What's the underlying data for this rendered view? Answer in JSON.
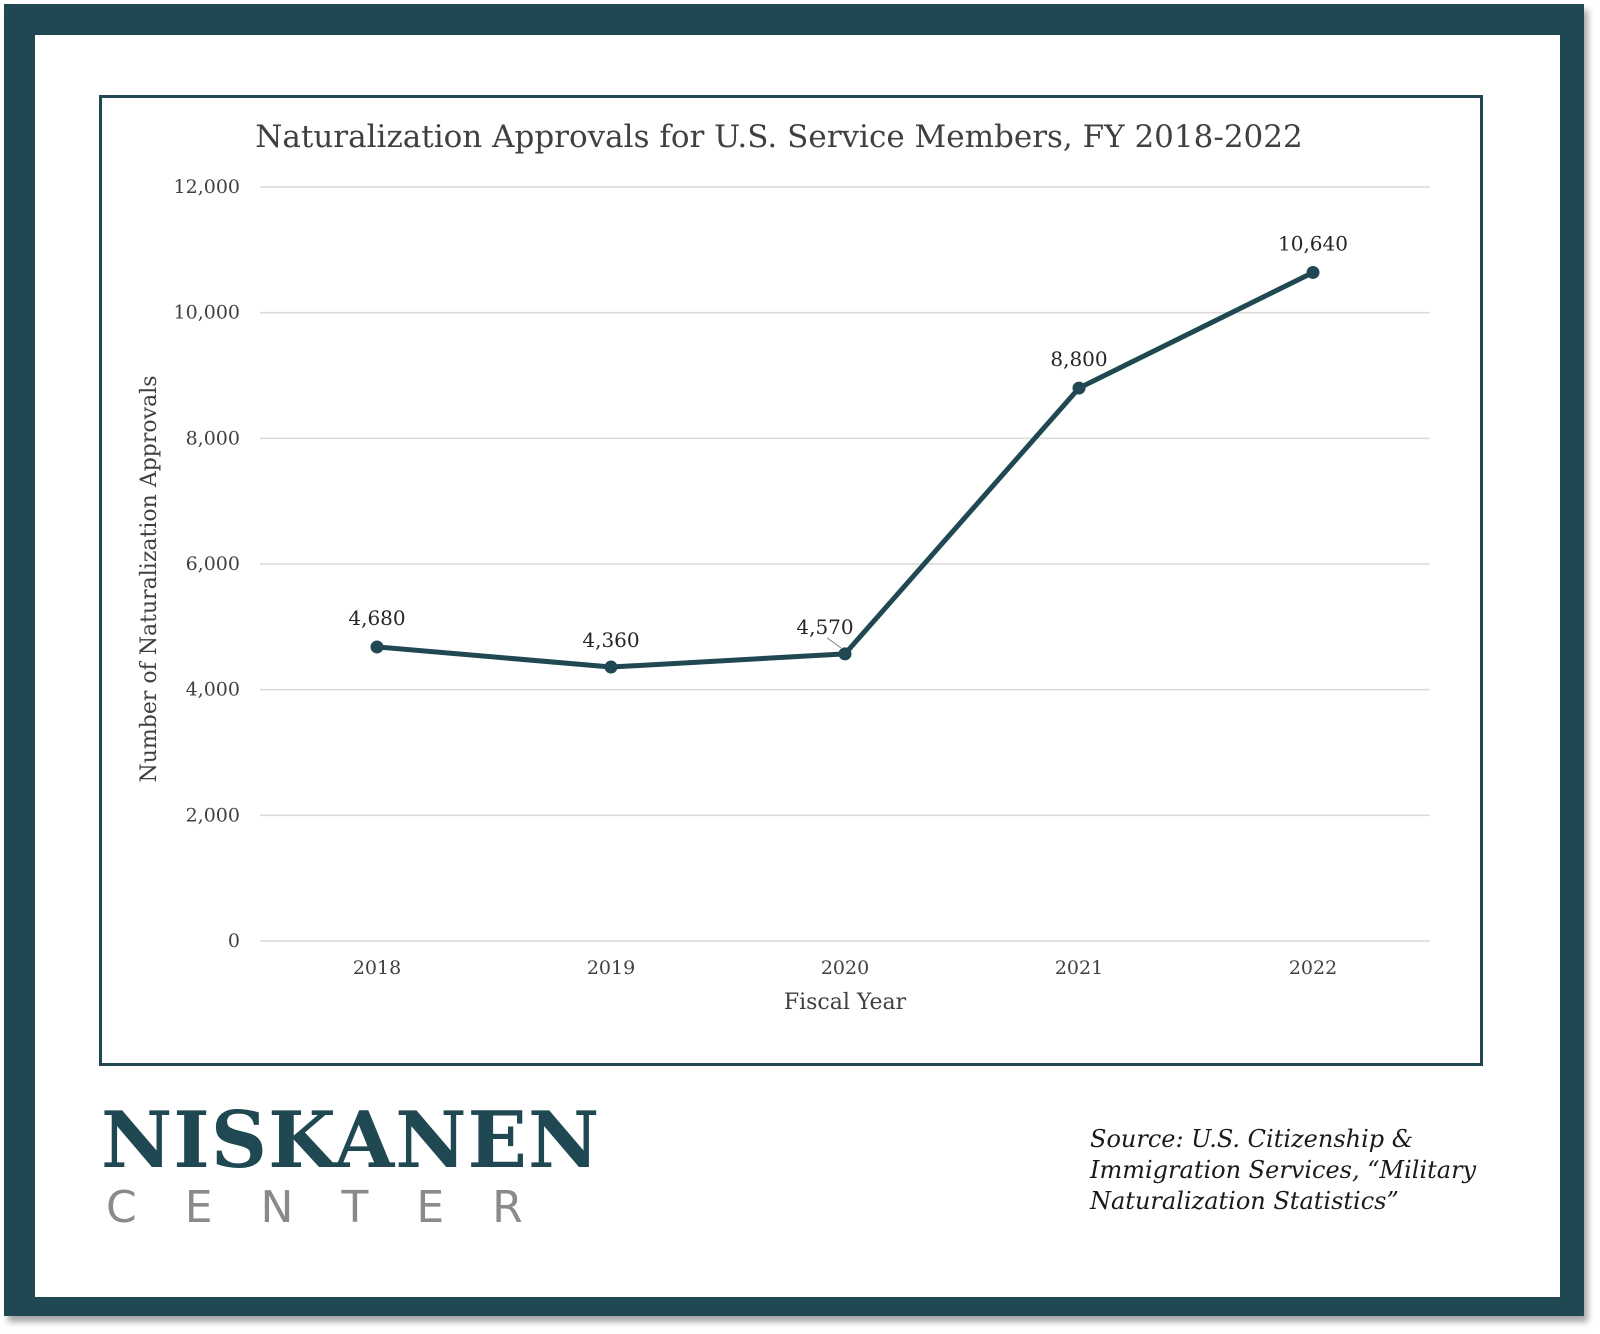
{
  "chart_data": {
    "type": "line",
    "title": "Naturalization Approvals for U.S. Service Members, FY 2018-2022",
    "xlabel": "Fiscal Year",
    "ylabel": "Number of Naturalization Approvals",
    "categories": [
      "2018",
      "2019",
      "2020",
      "2021",
      "2022"
    ],
    "series": [
      {
        "values": [
          4680,
          4360,
          4570,
          8800,
          10640
        ]
      }
    ],
    "data_labels": [
      "4,680",
      "4,360",
      "4,570",
      "8,800",
      "10,640"
    ],
    "ylim": [
      0,
      12000
    ],
    "yticks": [
      0,
      2000,
      4000,
      6000,
      8000,
      10000,
      12000
    ],
    "ytick_labels": [
      "0",
      "2,000",
      "4,000",
      "6,000",
      "8,000",
      "10,000",
      "12,000"
    ],
    "grid": true,
    "legend": "none",
    "line_color": "#1f4852"
  },
  "logo": {
    "main": "NISKANEN",
    "sub": "CENTER"
  },
  "source_note": "Source: U.S. Citizenship & Immigration Services, “Military Naturalization Statistics”",
  "colors": {
    "frame": "#1f4852",
    "grid": "#d9d9d9",
    "text": "#404040"
  }
}
